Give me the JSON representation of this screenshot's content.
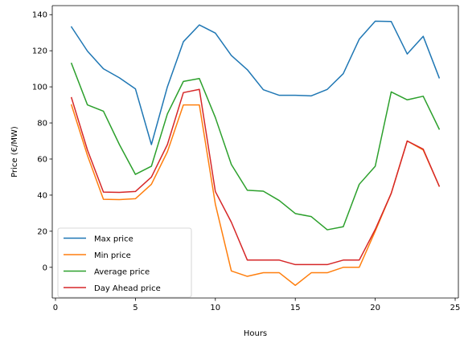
{
  "chart_data": {
    "type": "line",
    "xlabel": "Hours",
    "ylabel": "Price (€/MW)",
    "xlim": [
      -0.2,
      25.2
    ],
    "ylim": [
      -17,
      145
    ],
    "xticks": [
      0,
      5,
      10,
      15,
      20,
      25
    ],
    "yticks": [
      0,
      20,
      40,
      60,
      80,
      100,
      120,
      140
    ],
    "legend_position": "lower-left",
    "grid": false,
    "x": [
      1,
      2,
      3,
      4,
      5,
      6,
      7,
      8,
      9,
      10,
      11,
      12,
      13,
      14,
      15,
      16,
      17,
      18,
      19,
      20,
      21,
      22,
      23,
      24
    ],
    "series": [
      {
        "name": "Max price",
        "color": "#1f77b4",
        "values": [
          133.2,
          119.8,
          110.0,
          105.0,
          98.9,
          68.0,
          100.0,
          125.0,
          134.3,
          129.8,
          117.4,
          109.5,
          98.4,
          95.3,
          95.3,
          95.0,
          98.6,
          107.3,
          126.4,
          136.4,
          136.2,
          118.2,
          128.0,
          105.0
        ]
      },
      {
        "name": "Min price",
        "color": "#ff7f0e",
        "values": [
          90.0,
          62.0,
          37.7,
          37.5,
          38.0,
          46.0,
          64.0,
          90.0,
          90.0,
          35.0,
          -2.0,
          -5.0,
          -3.0,
          -3.0,
          -10.0,
          -3.0,
          -3.0,
          0.0,
          0.0,
          20.0,
          41.0,
          70.0,
          65.0,
          45.0
        ]
      },
      {
        "name": "Average price",
        "color": "#2ca02c",
        "values": [
          113.0,
          90.0,
          86.5,
          68.0,
          51.5,
          56.0,
          85.0,
          103.0,
          104.6,
          83.0,
          57.0,
          42.7,
          42.2,
          37.0,
          29.8,
          28.1,
          20.8,
          22.5,
          46.0,
          56.0,
          97.2,
          92.8,
          94.8,
          76.6
        ]
      },
      {
        "name": "Day Ahead price",
        "color": "#d62728",
        "values": [
          94.0,
          65.0,
          41.7,
          41.5,
          42.0,
          50.0,
          68.0,
          96.8,
          98.6,
          42.0,
          25.0,
          4.0,
          4.0,
          4.0,
          1.5,
          1.5,
          1.5,
          4.0,
          4.0,
          21.0,
          41.0,
          70.0,
          65.5,
          45.0
        ]
      }
    ]
  }
}
